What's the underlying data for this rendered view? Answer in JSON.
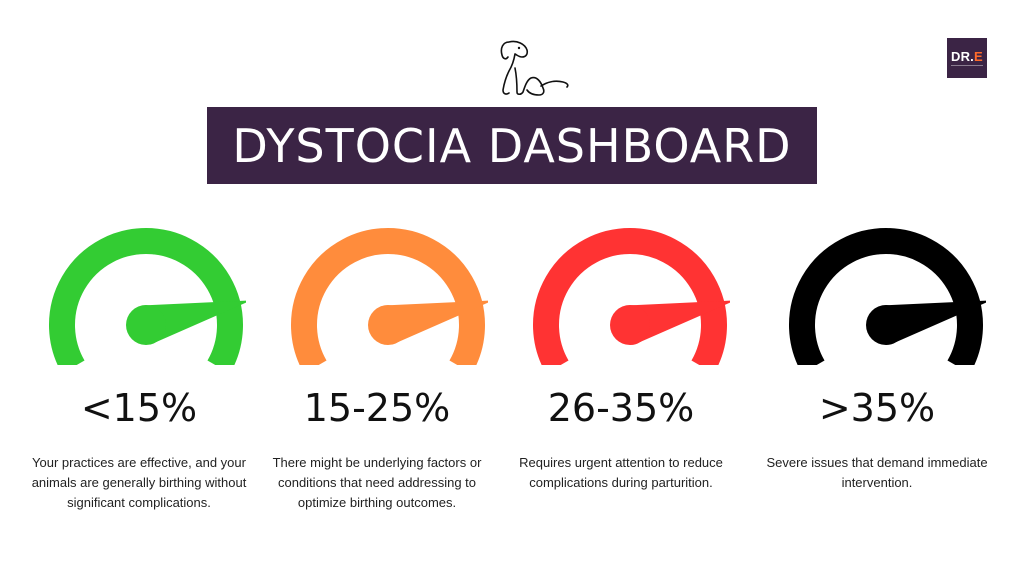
{
  "header": {
    "title": "DYSTOCIA DASHBOARD",
    "logo": {
      "text_main": "DR.",
      "text_accent": "E",
      "background": "#3b2445",
      "accent_color": "#ff6a2a"
    },
    "illustration": "dog-line-drawing-icon"
  },
  "gauges": [
    {
      "value_label": "<15%",
      "color": "#33cc33",
      "level": 0.82,
      "description": "Your practices are effective, and your animals are generally birthing without significant complications."
    },
    {
      "value_label": "15-25%",
      "color": "#ff8c3c",
      "level": 0.82,
      "description": "There might be underlying factors or conditions that need addressing to optimize birthing outcomes."
    },
    {
      "value_label": "26-35%",
      "color": "#ff3333",
      "level": 0.82,
      "description": "Requires urgent attention to reduce complications during parturition."
    },
    {
      "value_label": ">35%",
      "color": "#000000",
      "level": 0.82,
      "description": "Severe issues that demand immediate intervention."
    }
  ]
}
